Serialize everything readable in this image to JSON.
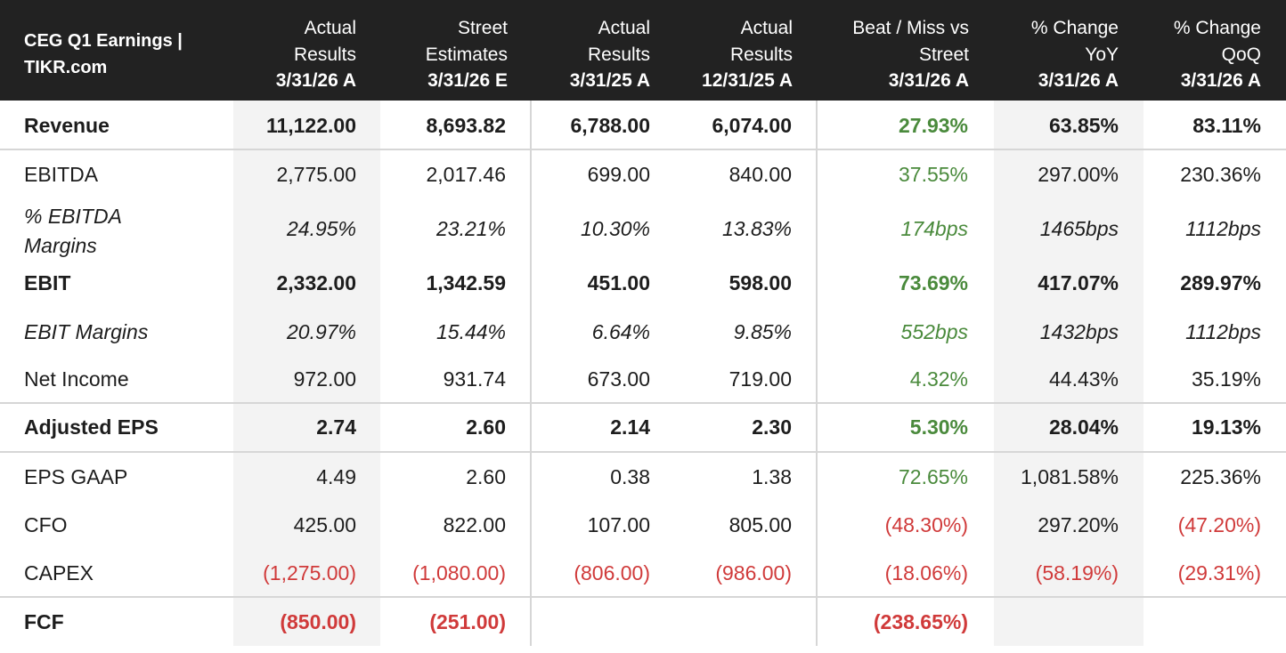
{
  "header": {
    "title_line1": "CEG Q1 Earnings |",
    "title_line2": "TIKR.com",
    "columns": [
      {
        "l1": "Actual",
        "l2": "Results",
        "l3": "3/31/26 A"
      },
      {
        "l1": "Street",
        "l2": "Estimates",
        "l3": "3/31/26 E"
      },
      {
        "l1": "Actual",
        "l2": "Results",
        "l3": "3/31/25 A"
      },
      {
        "l1": "Actual",
        "l2": "Results",
        "l3": "12/31/25 A"
      },
      {
        "l1": "Beat / Miss vs",
        "l2": "Street",
        "l3": "3/31/26 A"
      },
      {
        "l1": "% Change",
        "l2": "YoY",
        "l3": "3/31/26 A"
      },
      {
        "l1": "% Change",
        "l2": "QoQ",
        "l3": "3/31/26 A"
      }
    ]
  },
  "rows": [
    {
      "label": "Revenue",
      "values": [
        "11,122.00",
        "8,693.82",
        "6,788.00",
        "6,074.00",
        "27.93%",
        "63.85%",
        "83.11%"
      ]
    },
    {
      "label": "EBITDA",
      "values": [
        "2,775.00",
        "2,017.46",
        "699.00",
        "840.00",
        "37.55%",
        "297.00%",
        "230.36%"
      ]
    },
    {
      "label_line1": "% EBITDA",
      "label_line2": "Margins",
      "values": [
        "24.95%",
        "23.21%",
        "10.30%",
        "13.83%",
        "174bps",
        "1465bps",
        "1112bps"
      ]
    },
    {
      "label": "EBIT",
      "values": [
        "2,332.00",
        "1,342.59",
        "451.00",
        "598.00",
        "73.69%",
        "417.07%",
        "289.97%"
      ]
    },
    {
      "label": "EBIT Margins",
      "values": [
        "20.97%",
        "15.44%",
        "6.64%",
        "9.85%",
        "552bps",
        "1432bps",
        "1112bps"
      ]
    },
    {
      "label": "Net Income",
      "values": [
        "972.00",
        "931.74",
        "673.00",
        "719.00",
        "4.32%",
        "44.43%",
        "35.19%"
      ]
    },
    {
      "label": "Adjusted EPS",
      "values": [
        "2.74",
        "2.60",
        "2.14",
        "2.30",
        "5.30%",
        "28.04%",
        "19.13%"
      ]
    },
    {
      "label": "EPS GAAP",
      "values": [
        "4.49",
        "2.60",
        "0.38",
        "1.38",
        "72.65%",
        "1,081.58%",
        "225.36%"
      ]
    },
    {
      "label": "CFO",
      "values": [
        "425.00",
        "822.00",
        "107.00",
        "805.00",
        "(48.30%)",
        "297.20%",
        "(47.20%)"
      ]
    },
    {
      "label": "CAPEX",
      "values": [
        "(1,275.00)",
        "(1,080.00)",
        "(806.00)",
        "(986.00)",
        "(18.06%)",
        "(58.19%)",
        "(29.31%)"
      ]
    },
    {
      "label": "FCF",
      "values": [
        "(850.00)",
        "(251.00)",
        "",
        "",
        "(238.65%)",
        "",
        ""
      ]
    }
  ],
  "colors": {
    "header_bg": "#222222",
    "positive": "#4a8a3c",
    "negative": "#d03a3a",
    "shade": "#f3f3f3"
  }
}
